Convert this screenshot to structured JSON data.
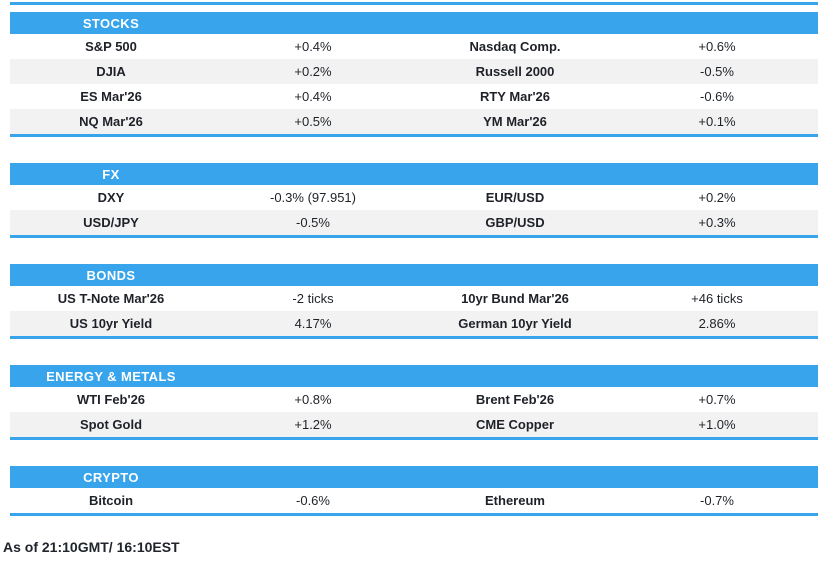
{
  "colors": {
    "accent": "#37a4ec",
    "stripe": "#f2f2f2",
    "header_text": "#ffffff",
    "body_text": "#1e2228"
  },
  "chart_data": {
    "type": "table",
    "columns": [
      "instrument",
      "change",
      "instrument",
      "change"
    ],
    "as_of": "As of 21:10GMT/ 16:10EST",
    "sections": [
      {
        "title": "STOCKS",
        "rows": [
          [
            "S&P 500",
            "+0.4%",
            "Nasdaq Comp.",
            "+0.6%"
          ],
          [
            "DJIA",
            "+0.2%",
            "Russell 2000",
            "-0.5%"
          ],
          [
            "ES Mar'26",
            "+0.4%",
            "RTY Mar'26",
            "-0.6%"
          ],
          [
            "NQ Mar'26",
            "+0.5%",
            "YM Mar'26",
            "+0.1%"
          ]
        ]
      },
      {
        "title": "FX",
        "rows": [
          [
            "DXY",
            "-0.3% (97.951)",
            "EUR/USD",
            "+0.2%"
          ],
          [
            "USD/JPY",
            "-0.5%",
            "GBP/USD",
            "+0.3%"
          ]
        ]
      },
      {
        "title": "BONDS",
        "rows": [
          [
            "US T-Note Mar'26",
            "-2 ticks",
            "10yr Bund Mar'26",
            "+46 ticks"
          ],
          [
            "US 10yr Yield",
            "4.17%",
            "German 10yr Yield",
            "2.86%"
          ]
        ]
      },
      {
        "title": "ENERGY & METALS",
        "rows": [
          [
            "WTI Feb'26",
            "+0.8%",
            "Brent Feb'26",
            "+0.7%"
          ],
          [
            "Spot Gold",
            "+1.2%",
            "CME Copper",
            "+1.0%"
          ]
        ]
      },
      {
        "title": "CRYPTO",
        "rows": [
          [
            "Bitcoin",
            "-0.6%",
            "Ethereum",
            "-0.7%"
          ]
        ]
      }
    ]
  }
}
